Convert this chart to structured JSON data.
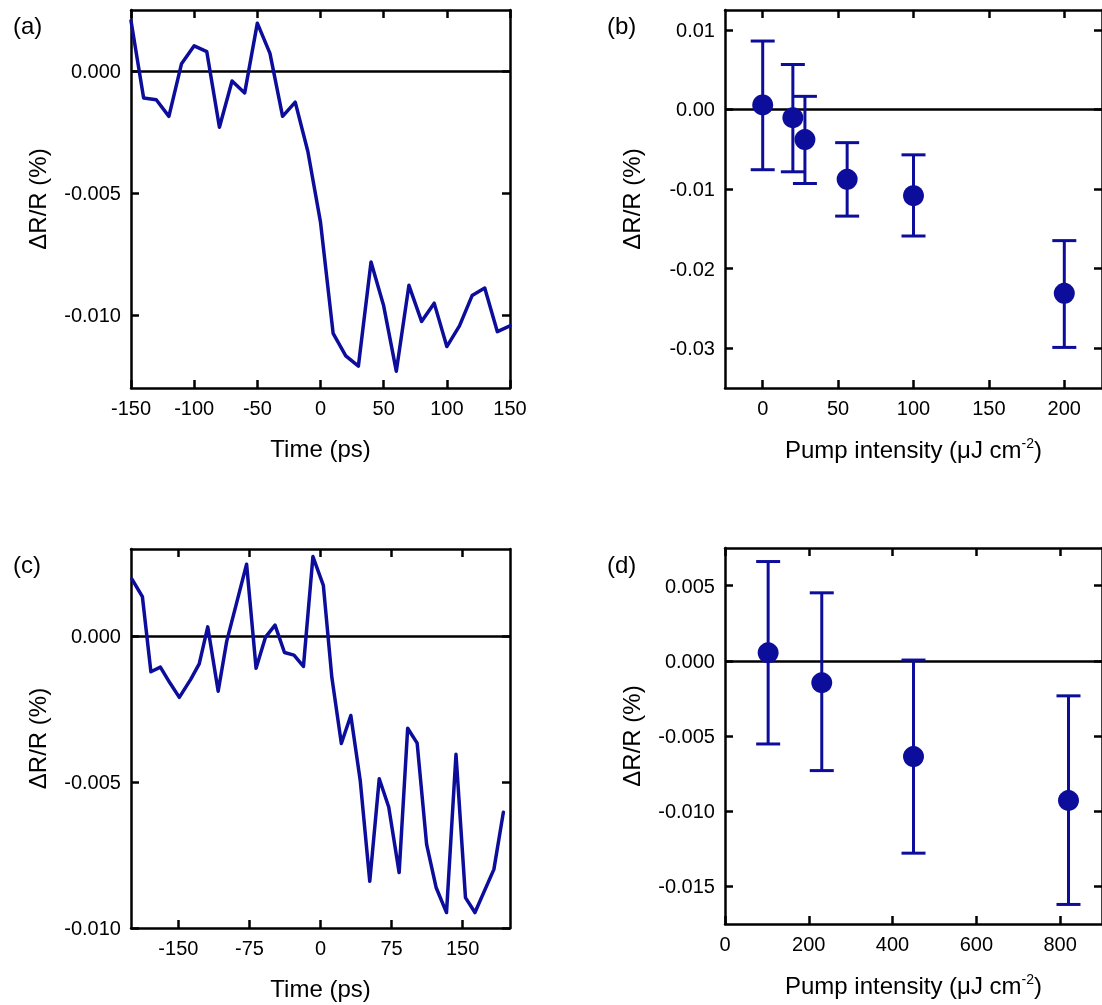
{
  "chart_data": [
    {
      "type": "line",
      "title": "(a)",
      "xlabel": "Time (ps)",
      "ylabel": "ΔR/R (%)",
      "series": [
        {
          "color": "#0d0d9c",
          "x": [
            -150,
            -140,
            -130,
            -120,
            -110,
            -100,
            -90,
            -80,
            -70,
            -60,
            -50,
            -40,
            -30,
            -20,
            -10,
            0,
            10,
            20,
            30,
            40,
            50,
            60,
            70,
            80,
            90,
            100,
            110,
            120,
            130,
            140,
            150
          ],
          "values": [
            0.00206,
            -0.00111,
            -0.00118,
            -0.00186,
            0.0003,
            0.00103,
            0.00079,
            -0.00231,
            -0.00041,
            -0.0009,
            0.00196,
            0.00072,
            -0.00186,
            -0.00128,
            -0.0033,
            -0.0062,
            -0.01076,
            -0.01168,
            -0.0121,
            -0.00783,
            -0.00963,
            -0.01231,
            -0.00879,
            -0.01027,
            -0.00952,
            -0.0113,
            -0.01045,
            -0.00921,
            -0.0089,
            -0.01069,
            -0.01045
          ]
        }
      ],
      "xlim": [
        -150,
        150
      ],
      "xticks": [
        -150,
        -100,
        -50,
        0,
        50,
        100,
        150
      ],
      "ylim": [
        -0.013,
        0.0025
      ],
      "yticks": [
        {
          "value": 0,
          "label": "0.000"
        },
        {
          "value": -0.005,
          "label": "-0.005"
        },
        {
          "value": -0.01,
          "label": "-0.010"
        }
      ],
      "ref_lines": [
        {
          "axis": "y",
          "value": 0,
          "color": "#000000"
        }
      ],
      "grid": false,
      "line_style": "solid"
    },
    {
      "type": "scatter",
      "title": "(b)",
      "xlabel": "Pump intensity (μJ cm$^{-2}$)",
      "ylabel": "ΔR/R (%)",
      "series": [
        {
          "color": "#0d0d9c",
          "x": [
            0,
            20,
            28,
            56,
            100,
            200
          ],
          "values": [
            0.00057,
            -0.00104,
            -0.00378,
            -0.00878,
            -0.01083,
            -0.0231
          ],
          "errors": [
            [
              -0.00757,
              0.0086
            ],
            [
              -0.00783,
              0.00565
            ],
            [
              -0.0093,
              0.00165
            ],
            [
              -0.0134,
              -0.00417
            ],
            [
              -0.0159,
              -0.0057
            ],
            [
              -0.0299,
              -0.01648
            ]
          ]
        }
      ],
      "xlim": [
        -25,
        225
      ],
      "xticks": [
        0,
        50,
        100,
        150,
        200
      ],
      "ylim": [
        -0.035,
        0.0125
      ],
      "yticks": [
        {
          "value": 0.01,
          "label": "0.01"
        },
        {
          "value": 0,
          "label": "0.00"
        },
        {
          "value": -0.01,
          "label": "-0.01"
        },
        {
          "value": -0.02,
          "label": "-0.02"
        },
        {
          "value": -0.03,
          "label": "-0.03"
        }
      ],
      "ref_lines": [
        {
          "axis": "y",
          "value": 0,
          "color": "#000000"
        }
      ],
      "grid": false,
      "marker": "circle"
    },
    {
      "type": "line",
      "title": "(c)",
      "xlabel": "Time (ps)",
      "ylabel": "ΔR/R (%)",
      "series": [
        {
          "color": "#0d0d9c",
          "x": [
            -199,
            -188,
            -179,
            -169,
            -159,
            -149,
            -137,
            -128,
            -119,
            -108,
            -99,
            -78,
            -68,
            -58,
            -48,
            -38,
            -28,
            -18,
            -8,
            3,
            12,
            22,
            32,
            42,
            52,
            62,
            72,
            83,
            92,
            102,
            112,
            122,
            133,
            143,
            153,
            163,
            183,
            193
          ],
          "values": [
            0.00197,
            0.00137,
            -0.00121,
            -0.00105,
            -0.00159,
            -0.00209,
            -0.00147,
            -0.00094,
            0.00033,
            -0.00188,
            -0.00017,
            0.00248,
            -0.00109,
            -2e-05,
            0.00039,
            -0.00055,
            -0.00064,
            -0.00103,
            0.00274,
            0.00175,
            -0.00141,
            -0.00367,
            -0.00271,
            -0.00496,
            -0.0084,
            -0.00488,
            -0.00585,
            -0.0081,
            -0.00315,
            -0.00366,
            -0.00713,
            -0.00861,
            -0.00947,
            -0.00404,
            -0.00896,
            -0.00947,
            -0.00799,
            -0.00603
          ]
        }
      ],
      "xlim": [
        -200,
        200
      ],
      "xticks": [
        -150,
        -75,
        0,
        75,
        150
      ],
      "ylim": [
        -0.01,
        0.003
      ],
      "yticks": [
        {
          "value": 0,
          "label": "0.000"
        },
        {
          "value": -0.005,
          "label": "-0.005"
        },
        {
          "value": -0.01,
          "label": "-0.010"
        }
      ],
      "ref_lines": [
        {
          "axis": "y",
          "value": 0,
          "color": "#000000"
        }
      ],
      "grid": false,
      "line_style": "solid"
    },
    {
      "type": "scatter",
      "title": "(d)",
      "xlabel": "Pump intensity (μJ cm$^{-2}$)",
      "ylabel": "ΔR/R (%)",
      "series": [
        {
          "color": "#0d0d9c",
          "x": [
            103,
            231,
            450,
            820
          ],
          "values": [
            0.00053,
            -0.00146,
            -0.00637,
            -0.00929
          ],
          "errors": [
            [
              -0.00553,
              0.0066
            ],
            [
              -0.0073,
              0.00452
            ],
            [
              -0.01279,
              5e-05
            ],
            [
              -0.0162,
              -0.00233
            ]
          ]
        }
      ],
      "xlim": [
        0,
        900
      ],
      "xticks": [
        0,
        200,
        400,
        600,
        800
      ],
      "ylim": [
        -0.0175,
        0.0075
      ],
      "yticks": [
        {
          "value": 0.005,
          "label": "0.005"
        },
        {
          "value": 0,
          "label": "0.000"
        },
        {
          "value": -0.005,
          "label": "-0.005"
        },
        {
          "value": -0.01,
          "label": "-0.010"
        },
        {
          "value": -0.015,
          "label": "-0.015"
        }
      ],
      "ref_lines": [
        {
          "axis": "y",
          "value": 0,
          "color": "#000000"
        }
      ],
      "grid": false,
      "marker": "circle"
    }
  ]
}
